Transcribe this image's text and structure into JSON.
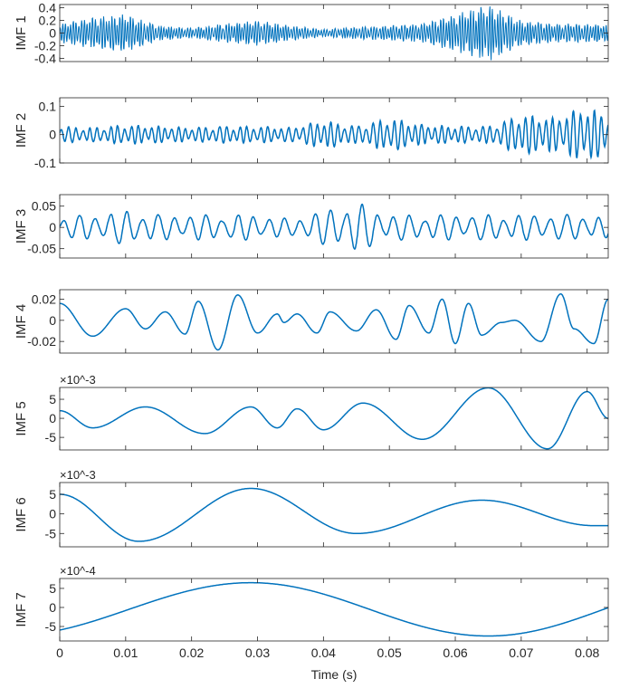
{
  "chart_data": {
    "type": "line",
    "title": "",
    "xlabel": "Time (s)",
    "xlim": [
      0,
      0.0832
    ],
    "xticks": [
      0,
      0.01,
      0.02,
      0.03,
      0.04,
      0.05,
      0.06,
      0.07,
      0.08
    ],
    "xtick_labels": [
      "0",
      "0.01",
      "0.02",
      "0.03",
      "0.04",
      "0.05",
      "0.06",
      "0.07",
      "0.08"
    ],
    "line_color": "#0072BD",
    "grid": false,
    "subplots": [
      {
        "ylabel": "IMF 1",
        "ylim": [
          -0.45,
          0.45
        ],
        "yticks": [
          0.4,
          0.2,
          0,
          -0.2,
          -0.4
        ],
        "ytick_labels": [
          "0.4",
          "0.2",
          "0",
          "-0.2",
          "-0.4"
        ],
        "exponent_label": "",
        "representation": "oscillation",
        "frequency_hz": 2400,
        "envelope_step": 0.005,
        "envelope": [
          0.15,
          0.25,
          0.3,
          0.12,
          0.08,
          0.15,
          0.2,
          0.12,
          0.06,
          0.1,
          0.12,
          0.15,
          0.3,
          0.45,
          0.2,
          0.15,
          0.15,
          0.12
        ]
      },
      {
        "ylabel": "IMF 2",
        "ylim": [
          -0.1,
          0.13
        ],
        "yticks": [
          0.1,
          0,
          -0.1
        ],
        "ytick_labels": [
          "0.1",
          "0",
          "-0.1"
        ],
        "exponent_label": "",
        "representation": "oscillation",
        "frequency_hz": 950,
        "envelope_step": 0.005,
        "envelope": [
          0.03,
          0.025,
          0.035,
          0.03,
          0.025,
          0.03,
          0.03,
          0.025,
          0.05,
          0.03,
          0.06,
          0.035,
          0.03,
          0.03,
          0.07,
          0.06,
          0.1,
          0.04
        ]
      },
      {
        "ylabel": "IMF 3",
        "ylim": [
          -0.072,
          0.077
        ],
        "yticks": [
          0.05,
          0,
          -0.05
        ],
        "ytick_labels": [
          "0.05",
          "0",
          "-0.05"
        ],
        "exponent_label": "",
        "representation": "oscillation",
        "frequency_hz": 420,
        "envelope_step": 0.005,
        "envelope": [
          0.025,
          0.03,
          0.04,
          0.03,
          0.03,
          0.03,
          0.03,
          0.02,
          0.04,
          0.06,
          0.03,
          0.03,
          0.03,
          0.03,
          0.03,
          0.03,
          0.03,
          0.02
        ]
      },
      {
        "ylabel": "IMF 4",
        "ylim": [
          -0.031,
          0.029
        ],
        "yticks": [
          0.02,
          0,
          -0.02
        ],
        "ytick_labels": [
          "0.02",
          "0",
          "-0.02"
        ],
        "exponent_label": "",
        "representation": "extrema",
        "x": [
          0,
          0.005,
          0.01,
          0.013,
          0.016,
          0.019,
          0.021,
          0.024,
          0.027,
          0.03,
          0.033,
          0.034,
          0.036,
          0.039,
          0.041,
          0.045,
          0.048,
          0.051,
          0.053,
          0.056,
          0.058,
          0.06,
          0.062,
          0.064,
          0.067,
          0.069,
          0.073,
          0.076,
          0.078,
          0.081,
          0.0832
        ],
        "values": [
          0.016,
          -0.015,
          0.011,
          -0.008,
          0.008,
          -0.013,
          0.018,
          -0.028,
          0.024,
          -0.012,
          0.006,
          -0.002,
          0.006,
          -0.012,
          0.008,
          -0.01,
          0.01,
          -0.018,
          0.014,
          -0.012,
          0.02,
          -0.022,
          0.016,
          -0.014,
          -0.002,
          0,
          -0.02,
          0.025,
          -0.008,
          -0.022,
          0.02
        ]
      },
      {
        "ylabel": "IMF 5",
        "ylim": [
          -8.3,
          8.1
        ],
        "yticks": [
          5,
          0,
          -5
        ],
        "ytick_labels": [
          "5",
          "0",
          "-5"
        ],
        "exponent_label": "×10^-3",
        "representation": "extrema",
        "x": [
          0,
          0.005,
          0.013,
          0.022,
          0.029,
          0.033,
          0.036,
          0.04,
          0.046,
          0.055,
          0.065,
          0.074,
          0.08,
          0.0832
        ],
        "values": [
          2,
          -2.5,
          3,
          -4,
          3,
          -2.5,
          2.5,
          -3,
          4,
          -5.5,
          8,
          -8,
          7,
          0
        ]
      },
      {
        "ylabel": "IMF 6",
        "ylim": [
          -8.4,
          8
        ],
        "yticks": [
          5,
          0,
          -5
        ],
        "ytick_labels": [
          "5",
          "0",
          "-5"
        ],
        "exponent_label": "×10^-3",
        "representation": "extrema",
        "x": [
          0,
          0.012,
          0.029,
          0.045,
          0.064,
          0.081,
          0.0832
        ],
        "values": [
          5,
          -7,
          6.5,
          -5,
          3.5,
          -3,
          -3
        ]
      },
      {
        "ylabel": "IMF 7",
        "ylim": [
          -8.8,
          7.6
        ],
        "yticks": [
          5,
          0,
          -5
        ],
        "ytick_labels": [
          "5",
          "0",
          "-5"
        ],
        "exponent_label": "×10^-4",
        "representation": "extrema",
        "x": [
          -0.008,
          0.029,
          0.065,
          0.1
        ],
        "values": [
          -7.5,
          6.5,
          -7.5,
          6.5
        ]
      }
    ]
  }
}
